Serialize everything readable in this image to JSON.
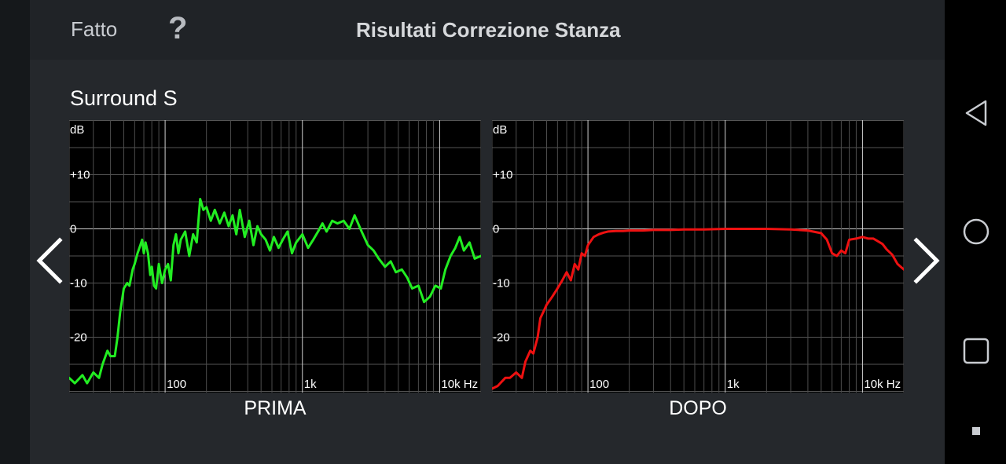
{
  "header": {
    "done_label": "Fatto",
    "help_icon": "?",
    "title": "Risultati Correzione Stanza"
  },
  "section": {
    "title": "Surround S"
  },
  "graphs": {
    "before": {
      "caption": "PRIMA",
      "color": "#22ee22"
    },
    "after": {
      "caption": "DOPO",
      "color": "#ee1111"
    }
  },
  "axis": {
    "y_unit": "dB",
    "y_ticks": [
      "+10",
      "0",
      "-10",
      "-20"
    ],
    "x_ticks": [
      "100",
      "1k",
      "10k Hz"
    ]
  },
  "chart_data": [
    {
      "type": "line",
      "title": "PRIMA",
      "x_scale": "log",
      "xlim": [
        20,
        20000
      ],
      "ylim": [
        -30,
        20
      ],
      "xlabel": "Hz",
      "ylabel": "dB",
      "grid": true,
      "series": [
        {
          "color": "#22ee22",
          "x": [
            20,
            22,
            25,
            27,
            30,
            33,
            35,
            38,
            40,
            43,
            45,
            47,
            50,
            53,
            55,
            58,
            60,
            63,
            66,
            68,
            70,
            72,
            75,
            78,
            80,
            83,
            86,
            90,
            95,
            100,
            105,
            110,
            115,
            120,
            125,
            130,
            140,
            150,
            160,
            170,
            180,
            190,
            200,
            215,
            230,
            250,
            270,
            290,
            310,
            330,
            350,
            380,
            410,
            440,
            470,
            500,
            540,
            580,
            620,
            670,
            720,
            780,
            840,
            900,
            1000,
            1100,
            1200,
            1300,
            1400,
            1500,
            1650,
            1800,
            2000,
            2200,
            2400,
            2700,
            3000,
            3300,
            3600,
            4000,
            4400,
            4800,
            5300,
            5800,
            6300,
            7000,
            7700,
            8500,
            9300,
            10200,
            11000,
            12000,
            13000,
            14000,
            15000,
            16500,
            18000,
            20000
          ],
          "y": [
            -27.5,
            -28.5,
            -27.0,
            -28.5,
            -26.5,
            -27.5,
            -25.0,
            -22.5,
            -23.5,
            -23.5,
            -20.0,
            -15.5,
            -11.0,
            -10.0,
            -10.5,
            -7.5,
            -6.5,
            -4.5,
            -3.0,
            -2.0,
            -4.5,
            -2.5,
            -4.5,
            -8.5,
            -7.0,
            -10.5,
            -11.0,
            -6.5,
            -10.0,
            -7.5,
            -6.5,
            -9.5,
            -3.0,
            -1.0,
            -4.5,
            -2.0,
            -0.5,
            -5.0,
            -1.0,
            -2.5,
            5.5,
            3.5,
            4.0,
            1.5,
            3.5,
            1.0,
            3.0,
            0.5,
            2.5,
            -1.0,
            3.5,
            -1.5,
            1.5,
            -3.0,
            0.5,
            -1.0,
            -2.0,
            -4.0,
            -1.5,
            -3.5,
            -2.0,
            -0.5,
            -4.5,
            -2.5,
            -1.0,
            -3.5,
            -2.0,
            -0.5,
            1.0,
            -0.5,
            1.5,
            1.0,
            1.5,
            0.0,
            2.5,
            -0.5,
            -3.0,
            -4.0,
            -5.5,
            -7.0,
            -6.0,
            -8.0,
            -7.5,
            -9.0,
            -11.0,
            -10.5,
            -13.5,
            -12.5,
            -10.5,
            -11.0,
            -7.5,
            -5.0,
            -3.5,
            -1.5,
            -4.0,
            -2.5,
            -5.5,
            -5.0
          ]
        }
      ]
    },
    {
      "type": "line",
      "title": "DOPO",
      "x_scale": "log",
      "xlim": [
        20,
        20000
      ],
      "ylim": [
        -30,
        20
      ],
      "xlabel": "Hz",
      "ylabel": "dB",
      "grid": true,
      "series": [
        {
          "color": "#ee1111",
          "x": [
            20,
            22,
            25,
            27,
            30,
            33,
            35,
            38,
            40,
            43,
            45,
            48,
            50,
            55,
            60,
            65,
            70,
            75,
            80,
            85,
            90,
            95,
            100,
            110,
            120,
            130,
            140,
            160,
            180,
            200,
            250,
            300,
            400,
            500,
            700,
            1000,
            1500,
            2000,
            3000,
            4000,
            5000,
            5500,
            6000,
            6500,
            7000,
            7500,
            8000,
            9000,
            10000,
            11000,
            12000,
            13000,
            14000,
            15000,
            16500,
            18000,
            20000
          ],
          "y": [
            -29.5,
            -29.0,
            -27.5,
            -27.5,
            -26.5,
            -27.5,
            -24.5,
            -22.5,
            -23.0,
            -20.0,
            -16.5,
            -15.0,
            -14.0,
            -12.5,
            -11.0,
            -9.5,
            -8.0,
            -9.5,
            -6.5,
            -7.5,
            -4.5,
            -5.0,
            -3.0,
            -1.5,
            -1.0,
            -0.7,
            -0.5,
            -0.4,
            -0.4,
            -0.3,
            -0.3,
            -0.2,
            -0.2,
            -0.1,
            -0.1,
            0.0,
            0.0,
            0.0,
            -0.1,
            -0.3,
            -0.8,
            -2.0,
            -4.5,
            -5.0,
            -4.0,
            -4.5,
            -2.0,
            -1.8,
            -1.5,
            -1.8,
            -1.8,
            -2.3,
            -2.8,
            -3.8,
            -4.8,
            -6.5,
            -7.5
          ]
        }
      ]
    }
  ]
}
